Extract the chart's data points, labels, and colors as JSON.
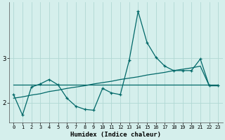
{
  "xlabel": "Humidex (Indice chaleur)",
  "background_color": "#d5efec",
  "line_color": "#006868",
  "grid_color": "#b0d8d4",
  "xlim": [
    -0.5,
    23.5
  ],
  "ylim": [
    1.55,
    4.25
  ],
  "yticks": [
    2,
    3
  ],
  "xticks": [
    0,
    1,
    2,
    3,
    4,
    5,
    6,
    7,
    8,
    9,
    10,
    11,
    12,
    13,
    14,
    15,
    16,
    17,
    18,
    19,
    20,
    21,
    22,
    23
  ],
  "line1_x": [
    0,
    1,
    2,
    3,
    4,
    5,
    6,
    7,
    8,
    9,
    10,
    11,
    12,
    13,
    14,
    15,
    16,
    17,
    18,
    19,
    20,
    21,
    22,
    23
  ],
  "line1_y": [
    2.18,
    1.72,
    2.35,
    2.42,
    2.52,
    2.4,
    2.1,
    1.92,
    1.85,
    1.83,
    2.32,
    2.22,
    2.18,
    2.95,
    4.05,
    3.35,
    3.02,
    2.82,
    2.72,
    2.72,
    2.72,
    2.98,
    2.38,
    2.38
  ],
  "line2_x": [
    0,
    23
  ],
  "line2_y": [
    2.4,
    2.4
  ],
  "line3_x": [
    0,
    1,
    2,
    3,
    4,
    5,
    6,
    7,
    8,
    9,
    10,
    11,
    12,
    13,
    14,
    15,
    16,
    17,
    18,
    19,
    20,
    21,
    22,
    23
  ],
  "line3_y": [
    2.1,
    2.13,
    2.17,
    2.2,
    2.25,
    2.28,
    2.32,
    2.35,
    2.38,
    2.42,
    2.45,
    2.48,
    2.52,
    2.55,
    2.58,
    2.62,
    2.65,
    2.68,
    2.72,
    2.75,
    2.78,
    2.82,
    2.38,
    2.38
  ]
}
